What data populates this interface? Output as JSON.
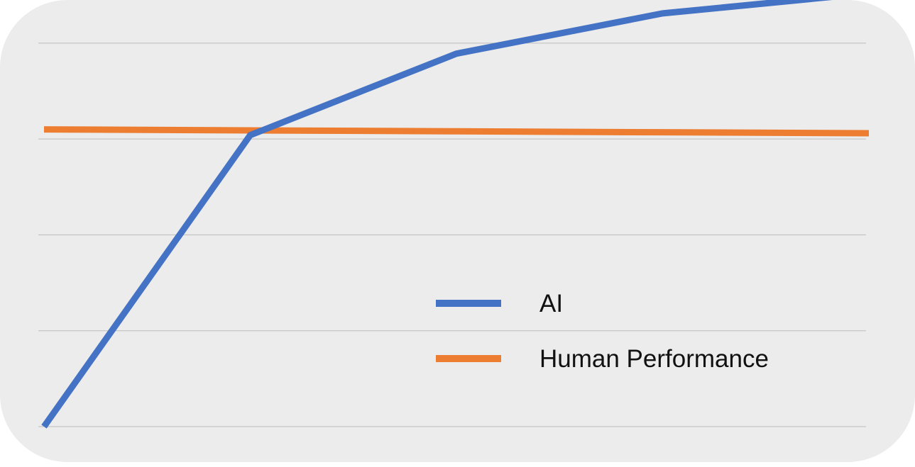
{
  "chart_data": {
    "type": "line",
    "title": "",
    "xlabel": "",
    "ylabel": "",
    "x": [
      0,
      1,
      2,
      3,
      4
    ],
    "xlim": [
      0,
      4
    ],
    "ylim": [
      0,
      4.25
    ],
    "yticks": [
      0,
      1,
      2,
      3,
      4
    ],
    "grid": true,
    "legend_position": "center-right",
    "series": [
      {
        "name": "AI",
        "color": "#4472c4",
        "values": [
          0.0,
          3.04,
          3.89,
          4.31,
          4.52
        ]
      },
      {
        "name": "Human Performance",
        "color": "#ed7d31",
        "values": [
          3.1,
          3.09,
          3.08,
          3.07,
          3.06
        ]
      }
    ]
  }
}
